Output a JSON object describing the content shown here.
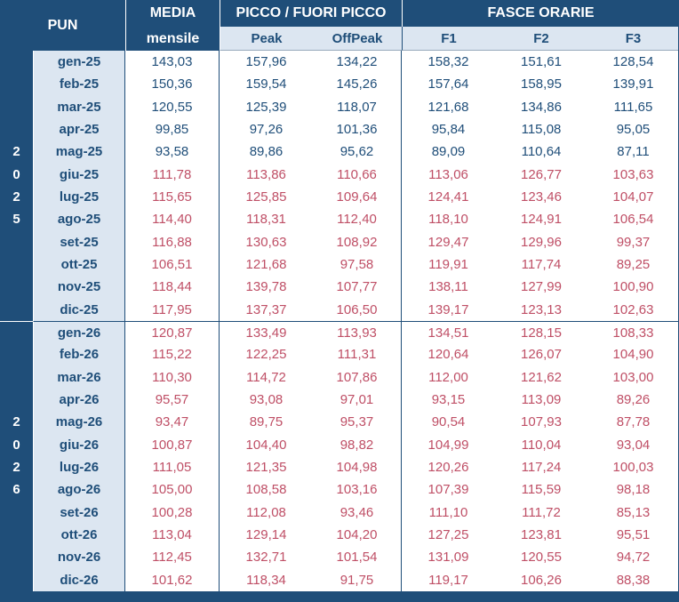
{
  "colors": {
    "navy": "#1F4E79",
    "light_blue": "#DCE6F1",
    "actual_text": "#1F4E79",
    "forecast_text": "#BF4F66",
    "white": "#FFFFFF"
  },
  "header": {
    "pun": "PUN",
    "media_line1": "MEDIA",
    "media_line2": "mensile",
    "picco_group": "PICCO / FUORI PICCO",
    "peak": "Peak",
    "offpeak": "OffPeak",
    "fasce_group": "FASCE ORARIE",
    "f1": "F1",
    "f2": "F2",
    "f3": "F3"
  },
  "chart_data": {
    "type": "table",
    "columns": [
      "PUN",
      "MEDIA mensile",
      "Peak",
      "OffPeak",
      "F1",
      "F2",
      "F3"
    ],
    "column_groups": [
      {
        "label": "PUN"
      },
      {
        "label": "MEDIA",
        "sub": [
          "mensile"
        ]
      },
      {
        "label": "PICCO / FUORI PICCO",
        "sub": [
          "Peak",
          "OffPeak"
        ]
      },
      {
        "label": "FASCE ORARIE",
        "sub": [
          "F1",
          "F2",
          "F3"
        ]
      }
    ],
    "year_groups": [
      "2025",
      "2026"
    ],
    "rows": [
      {
        "month": "gen-25",
        "year": "2025",
        "year_digit": "",
        "series_style": "actual",
        "values": [
          "143,03",
          "157,96",
          "134,22",
          "158,32",
          "151,61",
          "128,54"
        ]
      },
      {
        "month": "feb-25",
        "year": "2025",
        "year_digit": "",
        "series_style": "actual",
        "values": [
          "150,36",
          "159,54",
          "145,26",
          "157,64",
          "158,95",
          "139,91"
        ]
      },
      {
        "month": "mar-25",
        "year": "2025",
        "year_digit": "",
        "series_style": "actual",
        "values": [
          "120,55",
          "125,39",
          "118,07",
          "121,68",
          "134,86",
          "111,65"
        ]
      },
      {
        "month": "apr-25",
        "year": "2025",
        "year_digit": "",
        "series_style": "actual",
        "values": [
          "99,85",
          "97,26",
          "101,36",
          "95,84",
          "115,08",
          "95,05"
        ]
      },
      {
        "month": "mag-25",
        "year": "2025",
        "year_digit": "2",
        "series_style": "actual",
        "values": [
          "93,58",
          "89,86",
          "95,62",
          "89,09",
          "110,64",
          "87,11"
        ]
      },
      {
        "month": "giu-25",
        "year": "2025",
        "year_digit": "0",
        "series_style": "forecast",
        "values": [
          "111,78",
          "113,86",
          "110,66",
          "113,06",
          "126,77",
          "103,63"
        ]
      },
      {
        "month": "lug-25",
        "year": "2025",
        "year_digit": "2",
        "series_style": "forecast",
        "values": [
          "115,65",
          "125,85",
          "109,64",
          "124,41",
          "123,46",
          "104,07"
        ]
      },
      {
        "month": "ago-25",
        "year": "2025",
        "year_digit": "5",
        "series_style": "forecast",
        "values": [
          "114,40",
          "118,31",
          "112,40",
          "118,10",
          "124,91",
          "106,54"
        ]
      },
      {
        "month": "set-25",
        "year": "2025",
        "year_digit": "",
        "series_style": "forecast",
        "values": [
          "116,88",
          "130,63",
          "108,92",
          "129,47",
          "129,96",
          "99,37"
        ]
      },
      {
        "month": "ott-25",
        "year": "2025",
        "year_digit": "",
        "series_style": "forecast",
        "values": [
          "106,51",
          "121,68",
          "97,58",
          "119,91",
          "117,74",
          "89,25"
        ]
      },
      {
        "month": "nov-25",
        "year": "2025",
        "year_digit": "",
        "series_style": "forecast",
        "values": [
          "118,44",
          "139,78",
          "107,77",
          "138,11",
          "127,99",
          "100,90"
        ]
      },
      {
        "month": "dic-25",
        "year": "2025",
        "year_digit": "",
        "series_style": "forecast",
        "values": [
          "117,95",
          "137,37",
          "106,50",
          "139,17",
          "123,13",
          "102,63"
        ]
      },
      {
        "month": "gen-26",
        "year": "2026",
        "year_digit": "",
        "series_style": "forecast",
        "group_start": true,
        "values": [
          "120,87",
          "133,49",
          "113,93",
          "134,51",
          "128,15",
          "108,33"
        ]
      },
      {
        "month": "feb-26",
        "year": "2026",
        "year_digit": "",
        "series_style": "forecast",
        "values": [
          "115,22",
          "122,25",
          "111,31",
          "120,64",
          "126,07",
          "104,90"
        ]
      },
      {
        "month": "mar-26",
        "year": "2026",
        "year_digit": "",
        "series_style": "forecast",
        "values": [
          "110,30",
          "114,72",
          "107,86",
          "112,00",
          "121,62",
          "103,00"
        ]
      },
      {
        "month": "apr-26",
        "year": "2026",
        "year_digit": "",
        "series_style": "forecast",
        "values": [
          "95,57",
          "93,08",
          "97,01",
          "93,15",
          "113,09",
          "89,26"
        ]
      },
      {
        "month": "mag-26",
        "year": "2026",
        "year_digit": "2",
        "series_style": "forecast",
        "values": [
          "93,47",
          "89,75",
          "95,37",
          "90,54",
          "107,93",
          "87,78"
        ]
      },
      {
        "month": "giu-26",
        "year": "2026",
        "year_digit": "0",
        "series_style": "forecast",
        "values": [
          "100,87",
          "104,40",
          "98,82",
          "104,99",
          "110,04",
          "93,04"
        ]
      },
      {
        "month": "lug-26",
        "year": "2026",
        "year_digit": "2",
        "series_style": "forecast",
        "values": [
          "111,05",
          "121,35",
          "104,98",
          "120,26",
          "117,24",
          "100,03"
        ]
      },
      {
        "month": "ago-26",
        "year": "2026",
        "year_digit": "6",
        "series_style": "forecast",
        "values": [
          "105,00",
          "108,58",
          "103,16",
          "107,39",
          "115,59",
          "98,18"
        ]
      },
      {
        "month": "set-26",
        "year": "2026",
        "year_digit": "",
        "series_style": "forecast",
        "values": [
          "100,28",
          "112,08",
          "93,46",
          "111,10",
          "111,72",
          "85,13"
        ]
      },
      {
        "month": "ott-26",
        "year": "2026",
        "year_digit": "",
        "series_style": "forecast",
        "values": [
          "113,04",
          "129,14",
          "104,20",
          "127,25",
          "123,81",
          "95,51"
        ]
      },
      {
        "month": "nov-26",
        "year": "2026",
        "year_digit": "",
        "series_style": "forecast",
        "values": [
          "112,45",
          "132,71",
          "101,54",
          "131,09",
          "120,55",
          "94,72"
        ]
      },
      {
        "month": "dic-26",
        "year": "2026",
        "year_digit": "",
        "series_style": "forecast",
        "values": [
          "101,62",
          "118,34",
          "91,75",
          "119,17",
          "106,26",
          "88,38"
        ]
      }
    ]
  }
}
